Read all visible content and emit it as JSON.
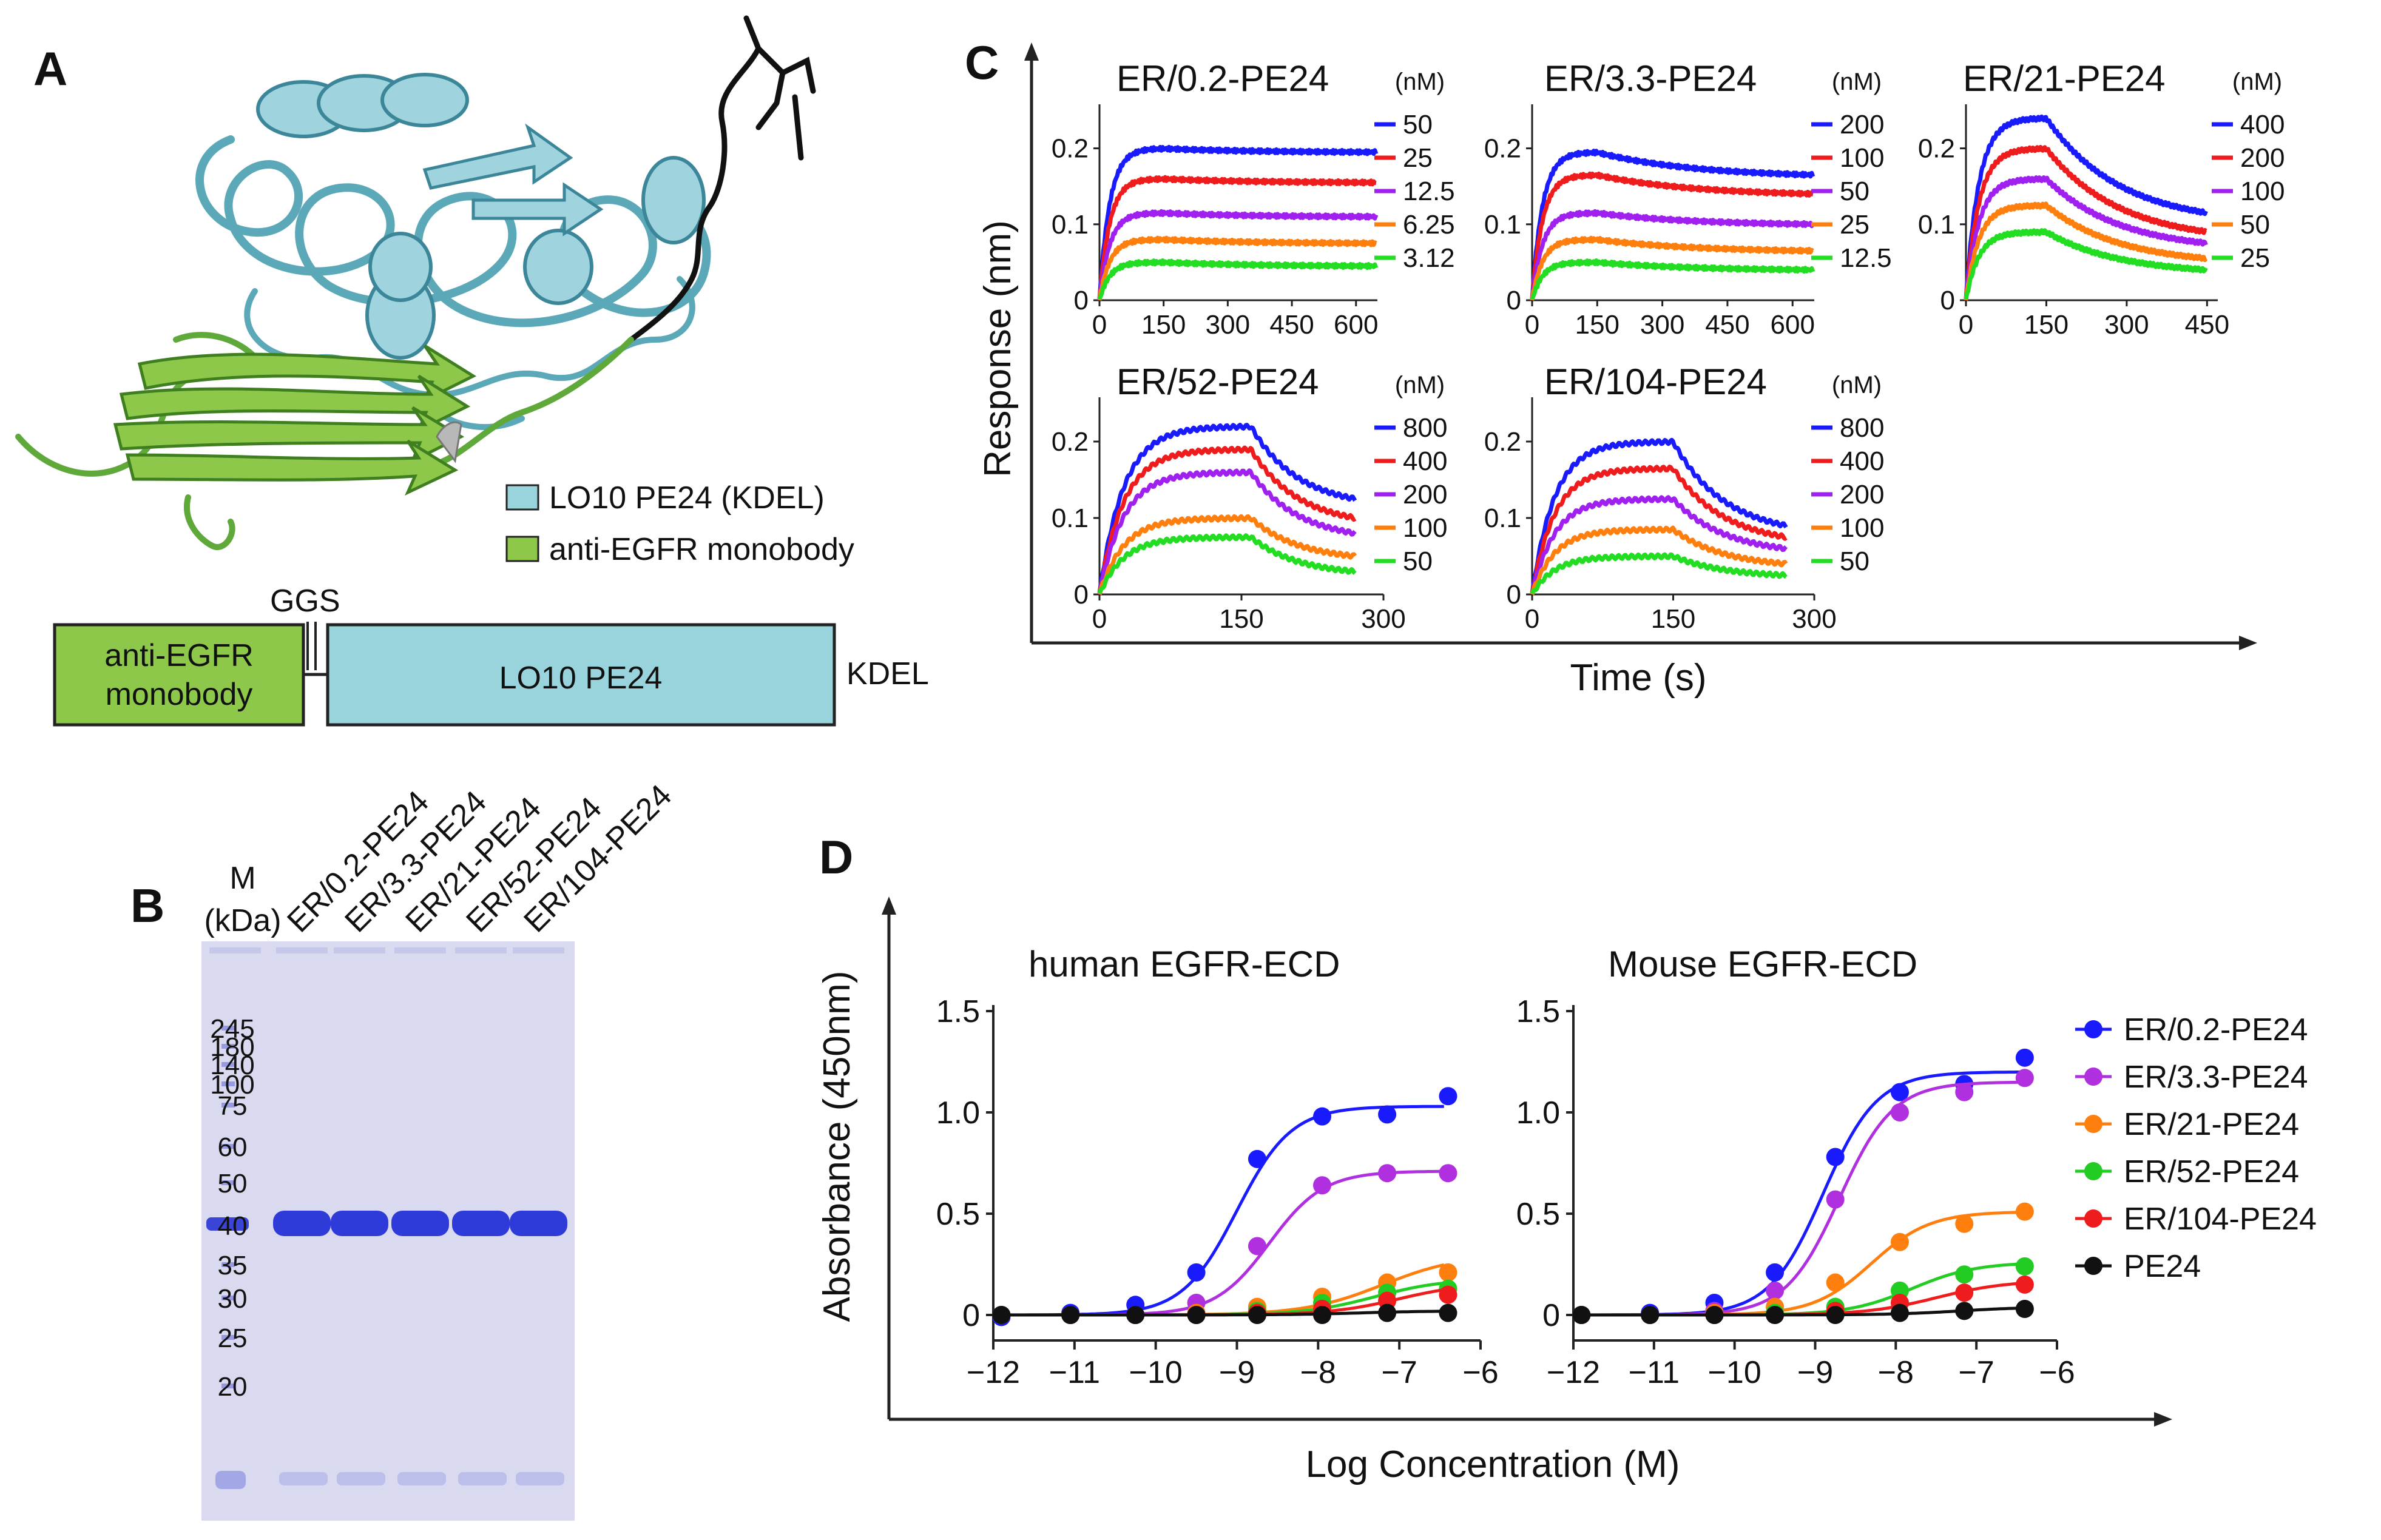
{
  "panels": {
    "A": {
      "label": "A",
      "legend": [
        {
          "name": "LO10 PE24 (KDEL)",
          "color": "#99d4dc"
        },
        {
          "name": "anti-EGFR monobody",
          "color": "#8dc84a"
        }
      ],
      "construct": {
        "linker": "GGS",
        "box1": "anti-EGFR\nmonobody",
        "box1_line1": "anti-EGFR",
        "box1_line2": "monobody",
        "box2": "LO10 PE24",
        "tail": "KDEL"
      }
    },
    "B": {
      "label": "B",
      "marker_header_line1": "M",
      "marker_header_line2": "(kDa)",
      "lanes": [
        "ER/0.2-PE24",
        "ER/3.3-PE24",
        "ER/21-PE24",
        "ER/52-PE24",
        "ER/104-PE24"
      ],
      "marker_bands": [
        "245",
        "180",
        "140",
        "100",
        "75",
        "60",
        "50",
        "40",
        "35",
        "30",
        "25",
        "20"
      ],
      "main_band_kda": 40,
      "gel_color": "#d9daf0",
      "band_color": "#2f3bd8"
    },
    "C": {
      "label": "C",
      "y_axis_title": "Response (nm)",
      "x_axis_title": "Time (s)",
      "unit_label": "(nM)"
    },
    "D": {
      "label": "D",
      "y_axis_title": "Absorbance (450nm)",
      "x_axis_title": "Log Concentration (M)"
    }
  },
  "chart_data": [
    {
      "id": "C1",
      "type": "line",
      "title": "ER/0.2-PE24",
      "xlabel": "Time (s)",
      "ylabel": "Response (nm)",
      "xlim": [
        0,
        650
      ],
      "ylim": [
        0,
        0.25
      ],
      "xticks": [
        "0",
        "150",
        "300",
        "450",
        "600"
      ],
      "yticks": [
        "0",
        "0.1",
        "0.2"
      ],
      "assoc_end": 150,
      "end": 650,
      "series": [
        {
          "name": "50",
          "plateau": 0.2,
          "dissoc_end": 0.195,
          "color": "#1a1aff"
        },
        {
          "name": "25",
          "plateau": 0.16,
          "dissoc_end": 0.155,
          "color": "#ee1c1c"
        },
        {
          "name": "12.5",
          "plateau": 0.115,
          "dissoc_end": 0.11,
          "color": "#a020f0"
        },
        {
          "name": "6.25",
          "plateau": 0.08,
          "dissoc_end": 0.075,
          "color": "#ff7f0e"
        },
        {
          "name": "3.12",
          "plateau": 0.05,
          "dissoc_end": 0.045,
          "color": "#22dd22"
        }
      ]
    },
    {
      "id": "C2",
      "type": "line",
      "title": "ER/3.3-PE24",
      "xlabel": "Time (s)",
      "ylabel": "Response (nm)",
      "xlim": [
        0,
        650
      ],
      "ylim": [
        0,
        0.25
      ],
      "xticks": [
        "0",
        "150",
        "300",
        "450",
        "600"
      ],
      "yticks": [
        "0",
        "0.1",
        "0.2"
      ],
      "assoc_end": 150,
      "end": 650,
      "series": [
        {
          "name": "200",
          "plateau": 0.195,
          "dissoc_end": 0.165,
          "color": "#1a1aff"
        },
        {
          "name": "100",
          "plateau": 0.165,
          "dissoc_end": 0.14,
          "color": "#ee1c1c"
        },
        {
          "name": "50",
          "plateau": 0.115,
          "dissoc_end": 0.1,
          "color": "#a020f0"
        },
        {
          "name": "25",
          "plateau": 0.08,
          "dissoc_end": 0.065,
          "color": "#ff7f0e"
        },
        {
          "name": "12.5",
          "plateau": 0.05,
          "dissoc_end": 0.04,
          "color": "#22dd22"
        }
      ]
    },
    {
      "id": "C3",
      "type": "line",
      "title": "ER/21-PE24",
      "xlabel": "Time (s)",
      "ylabel": "Response (nm)",
      "xlim": [
        0,
        470
      ],
      "ylim": [
        0,
        0.25
      ],
      "xticks": [
        "0",
        "150",
        "300",
        "450"
      ],
      "yticks": [
        "0",
        "0.1",
        "0.2"
      ],
      "assoc_end": 150,
      "end": 450,
      "series": [
        {
          "name": "400",
          "plateau": 0.24,
          "dissoc_end": 0.115,
          "color": "#1a1aff"
        },
        {
          "name": "200",
          "plateau": 0.2,
          "dissoc_end": 0.09,
          "color": "#ee1c1c"
        },
        {
          "name": "100",
          "plateau": 0.16,
          "dissoc_end": 0.075,
          "color": "#a020f0"
        },
        {
          "name": "50",
          "plateau": 0.125,
          "dissoc_end": 0.055,
          "color": "#ff7f0e"
        },
        {
          "name": "25",
          "plateau": 0.09,
          "dissoc_end": 0.04,
          "color": "#22dd22"
        }
      ]
    },
    {
      "id": "C4",
      "type": "line",
      "title": "ER/52-PE24",
      "xlabel": "Time (s)",
      "ylabel": "Response (nm)",
      "xlim": [
        0,
        300
      ],
      "ylim": [
        0,
        0.25
      ],
      "xticks": [
        "0",
        "150",
        "300"
      ],
      "yticks": [
        "0",
        "0.1",
        "0.2"
      ],
      "assoc_end": 160,
      "end": 270,
      "series": [
        {
          "name": "800",
          "plateau": 0.22,
          "dissoc_end": 0.125,
          "color": "#1a1aff"
        },
        {
          "name": "400",
          "plateau": 0.19,
          "dissoc_end": 0.1,
          "color": "#ee1c1c"
        },
        {
          "name": "200",
          "plateau": 0.16,
          "dissoc_end": 0.08,
          "color": "#a020f0"
        },
        {
          "name": "100",
          "plateau": 0.1,
          "dissoc_end": 0.05,
          "color": "#ff7f0e"
        },
        {
          "name": "50",
          "plateau": 0.075,
          "dissoc_end": 0.03,
          "color": "#22dd22"
        }
      ]
    },
    {
      "id": "C5",
      "type": "line",
      "title": "ER/104-PE24",
      "xlabel": "Time (s)",
      "ylabel": "Response (nm)",
      "xlim": [
        0,
        300
      ],
      "ylim": [
        0,
        0.25
      ],
      "xticks": [
        "0",
        "150",
        "300"
      ],
      "yticks": [
        "0",
        "0.1",
        "0.2"
      ],
      "assoc_end": 150,
      "end": 270,
      "series": [
        {
          "name": "800",
          "plateau": 0.2,
          "dissoc_end": 0.09,
          "color": "#1a1aff"
        },
        {
          "name": "400",
          "plateau": 0.165,
          "dissoc_end": 0.075,
          "color": "#ee1c1c"
        },
        {
          "name": "200",
          "plateau": 0.125,
          "dissoc_end": 0.06,
          "color": "#a020f0"
        },
        {
          "name": "100",
          "plateau": 0.085,
          "dissoc_end": 0.04,
          "color": "#ff7f0e"
        },
        {
          "name": "50",
          "plateau": 0.05,
          "dissoc_end": 0.025,
          "color": "#22dd22"
        }
      ]
    },
    {
      "id": "D1",
      "type": "scatter",
      "title": "human EGFR-ECD",
      "xlabel": "Log Concentration (M)",
      "ylabel": "Absorbance (450nm)",
      "xlim": [
        -12,
        -6
      ],
      "ylim": [
        -0.1,
        1.5
      ],
      "xticks": [
        "−12",
        "−11",
        "−10",
        "−9",
        "−8",
        "−7",
        "−6"
      ],
      "yticks": [
        "0",
        "0.5",
        "1.0",
        "1.5"
      ],
      "x": [
        -11.9,
        -11.05,
        -10.25,
        -9.5,
        -8.75,
        -7.95,
        -7.15,
        -6.4
      ],
      "series": [
        {
          "name": "ER/0.2-PE24",
          "color": "#1a1aff",
          "values": [
            -0.01,
            0.01,
            0.05,
            0.21,
            0.77,
            0.98,
            0.99,
            1.08
          ],
          "fit": {
            "bottom": 0.0,
            "top": 1.03,
            "logEC50": -9.0,
            "hill": 1.3
          }
        },
        {
          "name": "ER/3.3-PE24",
          "color": "#b030e0",
          "values": [
            0.0,
            0.0,
            0.0,
            0.06,
            0.34,
            0.64,
            0.7,
            0.7
          ],
          "fit": {
            "bottom": 0.0,
            "top": 0.71,
            "logEC50": -8.6,
            "hill": 1.3
          }
        },
        {
          "name": "ER/21-PE24",
          "color": "#ff7f0e",
          "values": [
            0.0,
            0.0,
            0.0,
            0.01,
            0.04,
            0.09,
            0.16,
            0.21
          ],
          "fit": {
            "bottom": 0.0,
            "top": 0.3,
            "logEC50": -7.2,
            "hill": 0.9
          }
        },
        {
          "name": "ER/52-PE24",
          "color": "#22cc22",
          "values": [
            0.0,
            0.0,
            0.0,
            0.0,
            0.02,
            0.06,
            0.11,
            0.13
          ],
          "fit": {
            "bottom": 0.0,
            "top": 0.18,
            "logEC50": -7.3,
            "hill": 1.0
          }
        },
        {
          "name": "ER/104-PE24",
          "color": "#ee1c1c",
          "values": [
            0.0,
            0.0,
            0.0,
            0.0,
            0.01,
            0.03,
            0.07,
            0.1
          ],
          "fit": {
            "bottom": 0.0,
            "top": 0.16,
            "logEC50": -7.0,
            "hill": 1.0
          }
        },
        {
          "name": "PE24",
          "color": "#111111",
          "values": [
            0.0,
            0.0,
            0.0,
            0.0,
            0.0,
            0.0,
            0.01,
            0.01
          ],
          "fit": {
            "bottom": 0.0,
            "top": 0.02,
            "logEC50": -7.5,
            "hill": 1.0
          }
        }
      ]
    },
    {
      "id": "D2",
      "type": "scatter",
      "title": "Mouse EGFR-ECD",
      "xlabel": "Log Concentration (M)",
      "ylabel": "Absorbance (450nm)",
      "xlim": [
        -12,
        -6
      ],
      "ylim": [
        -0.1,
        1.5
      ],
      "xticks": [
        "−12",
        "−11",
        "−10",
        "−9",
        "−8",
        "−7",
        "−6"
      ],
      "yticks": [
        "0",
        "0.5",
        "1.0",
        "1.5"
      ],
      "x": [
        -11.9,
        -11.05,
        -10.25,
        -9.5,
        -8.75,
        -7.95,
        -7.15,
        -6.4
      ],
      "series": [
        {
          "name": "ER/0.2-PE24",
          "color": "#1a1aff",
          "values": [
            0.0,
            0.01,
            0.06,
            0.21,
            0.78,
            1.1,
            1.14,
            1.27
          ],
          "fit": {
            "bottom": 0.0,
            "top": 1.2,
            "logEC50": -8.9,
            "hill": 1.3
          }
        },
        {
          "name": "ER/3.3-PE24",
          "color": "#b030e0",
          "values": [
            0.0,
            0.0,
            0.02,
            0.12,
            0.57,
            1.0,
            1.1,
            1.17
          ],
          "fit": {
            "bottom": 0.0,
            "top": 1.15,
            "logEC50": -8.7,
            "hill": 1.3
          }
        },
        {
          "name": "ER/21-PE24",
          "color": "#ff7f0e",
          "values": [
            0.0,
            0.0,
            0.01,
            0.04,
            0.16,
            0.36,
            0.45,
            0.51
          ],
          "fit": {
            "bottom": 0.0,
            "top": 0.51,
            "logEC50": -8.3,
            "hill": 1.2
          }
        },
        {
          "name": "ER/52-PE24",
          "color": "#22cc22",
          "values": [
            0.0,
            0.0,
            0.0,
            0.01,
            0.04,
            0.12,
            0.2,
            0.24
          ],
          "fit": {
            "bottom": 0.0,
            "top": 0.26,
            "logEC50": -7.8,
            "hill": 1.1
          }
        },
        {
          "name": "ER/104-PE24",
          "color": "#ee1c1c",
          "values": [
            0.0,
            0.0,
            0.0,
            0.0,
            0.02,
            0.06,
            0.11,
            0.15
          ],
          "fit": {
            "bottom": 0.0,
            "top": 0.17,
            "logEC50": -7.5,
            "hill": 1.0
          }
        },
        {
          "name": "PE24",
          "color": "#111111",
          "values": [
            0.0,
            0.0,
            0.0,
            0.0,
            0.0,
            0.01,
            0.02,
            0.03
          ],
          "fit": {
            "bottom": 0.0,
            "top": 0.04,
            "logEC50": -7.2,
            "hill": 1.0
          }
        }
      ]
    }
  ]
}
